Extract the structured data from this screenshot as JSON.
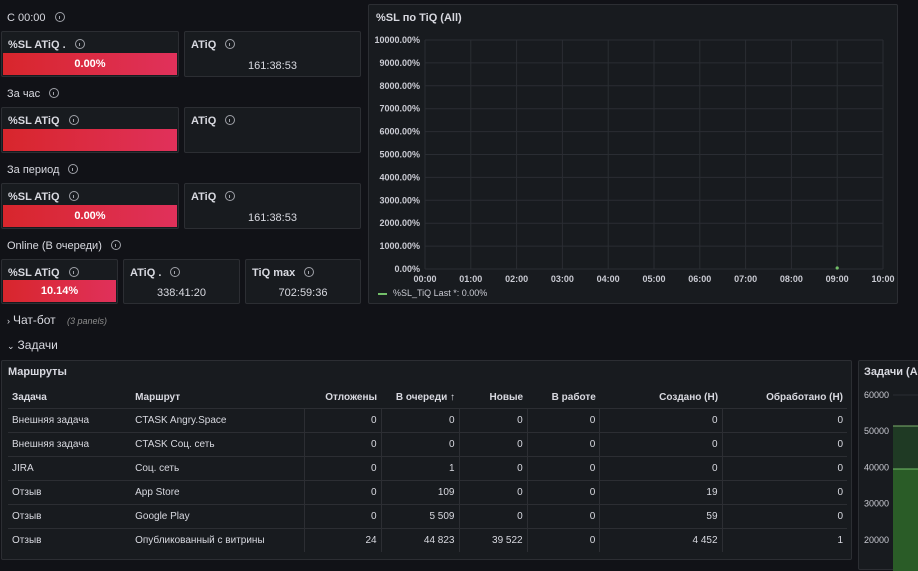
{
  "stats": {
    "since": {
      "label": "С 00:00",
      "sl_title": "%SL ATiQ .",
      "sl_value": "0.00%",
      "atiq_title": "ATiQ",
      "atiq_value": "161:38:53"
    },
    "hour": {
      "label": "За час",
      "sl_title": "%SL ATiQ",
      "sl_value": "",
      "atiq_title": "ATiQ",
      "atiq_value": ""
    },
    "period": {
      "label": "За период",
      "sl_title": "%SL ATiQ",
      "sl_value": "0.00%",
      "atiq_title": "ATiQ",
      "atiq_value": "161:38:53"
    },
    "online": {
      "label": "Online (В очереди)",
      "sl_title": "%SL ATiQ",
      "sl_value": "10.14%",
      "atiq_title": "ATiQ .",
      "atiq_value": "338:41:20",
      "tiqmax_title": "TiQ max",
      "tiqmax_value": "702:59:36"
    }
  },
  "sl_chart": {
    "title": "%SL по TiQ (All)",
    "legend": "%SL_TiQ  Last *: 0.00%",
    "series_color": "#73bf69"
  },
  "chart_data": [
    {
      "type": "line",
      "title": "%SL по TiQ (All)",
      "x_ticks": [
        "00:00",
        "01:00",
        "02:00",
        "03:00",
        "04:00",
        "05:00",
        "06:00",
        "07:00",
        "08:00",
        "09:00",
        "10:00"
      ],
      "y_ticks": [
        "10000.00%",
        "9000.00%",
        "8000.00%",
        "7000.00%",
        "6000.00%",
        "5000.00%",
        "4000.00%",
        "3000.00%",
        "2000.00%",
        "1000.00%",
        "0.00%"
      ],
      "ylim": [
        0,
        10000
      ],
      "grid": true,
      "legend_position": "bottom-left",
      "series": [
        {
          "name": "%SL_TiQ",
          "color": "#73bf69",
          "points": [
            {
              "x": "09:00",
              "y": 0
            }
          ]
        }
      ]
    },
    {
      "type": "area",
      "title": "Задачи (All)",
      "y_ticks": [
        "60000",
        "50000",
        "40000",
        "30000",
        "20000"
      ],
      "grid": true
    }
  ],
  "chatbot": {
    "label": "Чат-бот",
    "meta": "(3 panels)"
  },
  "tasks": {
    "label": "Задачи"
  },
  "routes": {
    "title": "Маршруты",
    "columns": [
      "Задача",
      "Маршрут",
      "Отложены",
      "В очереди",
      "Новые",
      "В работе",
      "Создано (Н)",
      "Обработано (Н)"
    ],
    "sort_indicator": "↑",
    "rows": [
      [
        "Внешняя задача",
        "CTASK Angry.Space",
        "0",
        "0",
        "0",
        "0",
        "0",
        "0"
      ],
      [
        "Внешняя задача",
        "CTASK Соц. сеть",
        "0",
        "0",
        "0",
        "0",
        "0",
        "0"
      ],
      [
        "JIRA",
        "Соц. сеть",
        "0",
        "1",
        "0",
        "0",
        "0",
        "0"
      ],
      [
        "Отзыв",
        "App Store",
        "0",
        "109",
        "0",
        "0",
        "19",
        "0"
      ],
      [
        "Отзыв",
        "Google Play",
        "0",
        "5 509",
        "0",
        "0",
        "59",
        "0"
      ],
      [
        "Отзыв",
        "Опубликованный с витрины",
        "24",
        "44 823",
        "39 522",
        "0",
        "4 452",
        "1"
      ]
    ]
  },
  "tasks_chart": {
    "title": "Задачи (All)",
    "fill_color": "#37872d"
  }
}
